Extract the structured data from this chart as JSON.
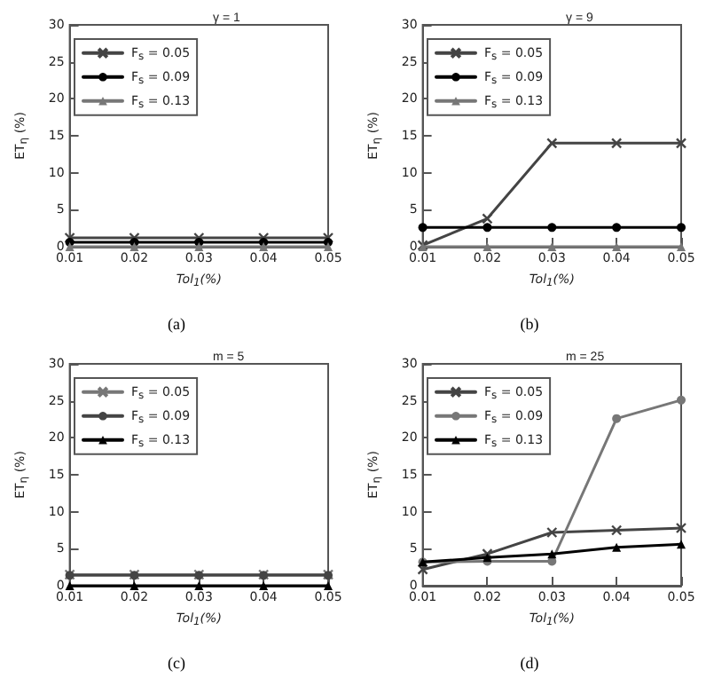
{
  "chart_data": [
    {
      "type": "line",
      "title": "γ = 1",
      "xlabel": "Tol$_{1}$(%)",
      "ylabel": "ET$_{η}$ (%)",
      "annotations": [
        "(a)"
      ],
      "x": [
        0.01,
        0.02,
        0.03,
        0.04,
        0.05
      ],
      "xlim": [
        0.01,
        0.05
      ],
      "xticks": [
        0.01,
        0.02,
        0.03,
        0.04,
        0.05
      ],
      "ylim": [
        0,
        30
      ],
      "yticks": [
        0,
        5,
        10,
        15,
        20,
        25,
        30
      ],
      "legend": "top left",
      "grid": false,
      "line_style": "solid",
      "series": [
        {
          "name": "F$_{s}$ = 0.05",
          "color": "#444444",
          "marker": "cross",
          "values": [
            1.2,
            1.2,
            1.2,
            1.2,
            1.2
          ]
        },
        {
          "name": "F$_{s}$ = 0.09",
          "color": "#000000",
          "marker": "circle",
          "values": [
            0.6,
            0.6,
            0.6,
            0.6,
            0.6
          ]
        },
        {
          "name": "F$_{s}$ = 0.13",
          "color": "#777777",
          "marker": "triangle",
          "values": [
            0,
            0,
            0,
            0,
            0
          ]
        }
      ]
    },
    {
      "type": "line",
      "title": "γ = 9",
      "xlabel": "Tol$_{1}$(%)",
      "ylabel": "ET$_{η}$ (%)",
      "annotations": [
        "(b)"
      ],
      "x": [
        0.01,
        0.02,
        0.03,
        0.04,
        0.05
      ],
      "xlim": [
        0.01,
        0.05
      ],
      "xticks": [
        0.01,
        0.02,
        0.03,
        0.04,
        0.05
      ],
      "ylim": [
        0,
        30
      ],
      "yticks": [
        0,
        5,
        10,
        15,
        20,
        25,
        30
      ],
      "legend": "top left",
      "grid": false,
      "line_style": "solid",
      "series": [
        {
          "name": "F$_{s}$ = 0.05",
          "color": "#444444",
          "marker": "cross",
          "values": [
            0.2,
            3.8,
            14,
            14,
            14
          ]
        },
        {
          "name": "F$_{s}$ = 0.09",
          "color": "#000000",
          "marker": "circle",
          "values": [
            2.6,
            2.6,
            2.6,
            2.6,
            2.6
          ]
        },
        {
          "name": "F$_{s}$ = 0.13",
          "color": "#777777",
          "marker": "triangle",
          "values": [
            0,
            0,
            0,
            0,
            0
          ]
        }
      ]
    },
    {
      "type": "line",
      "title": "m = 5",
      "xlabel": "Tol$_{1}$(%)",
      "ylabel": "ET$_{η}$ (%)",
      "annotations": [
        "(c)"
      ],
      "x": [
        0.01,
        0.02,
        0.03,
        0.04,
        0.05
      ],
      "xlim": [
        0.01,
        0.05
      ],
      "xticks": [
        0.01,
        0.02,
        0.03,
        0.04,
        0.05
      ],
      "ylim": [
        0,
        30
      ],
      "yticks": [
        0,
        5,
        10,
        15,
        20,
        25,
        30
      ],
      "legend": "top left",
      "grid": false,
      "line_style": "solid",
      "series": [
        {
          "name": "F$_{s}$ = 0.05",
          "color": "#777777",
          "marker": "cross",
          "values": [
            1.5,
            1.5,
            1.5,
            1.5,
            1.5
          ]
        },
        {
          "name": "F$_{s}$ = 0.09",
          "color": "#444444",
          "marker": "circle",
          "values": [
            1.4,
            1.4,
            1.4,
            1.4,
            1.4
          ]
        },
        {
          "name": "F$_{s}$ = 0.13",
          "color": "#000000",
          "marker": "triangle",
          "values": [
            0,
            0,
            0,
            0,
            0
          ]
        }
      ]
    },
    {
      "type": "line",
      "title": "m = 25",
      "xlabel": "Tol$_{1}$(%)",
      "ylabel": "ET$_{η}$ (%)",
      "annotations": [
        "(d)"
      ],
      "x": [
        0.01,
        0.02,
        0.03,
        0.04,
        0.05
      ],
      "xlim": [
        0.01,
        0.05
      ],
      "xticks": [
        0.01,
        0.02,
        0.03,
        0.04,
        0.05
      ],
      "ylim": [
        0,
        30
      ],
      "yticks": [
        0,
        5,
        10,
        15,
        20,
        25,
        30
      ],
      "legend": "top left",
      "grid": false,
      "line_style": "solid",
      "series": [
        {
          "name": "F$_{s}$ = 0.05",
          "color": "#444444",
          "marker": "cross",
          "values": [
            2.2,
            4.3,
            7.2,
            7.5,
            7.8
          ]
        },
        {
          "name": "F$_{s}$ = 0.09",
          "color": "#777777",
          "marker": "circle",
          "values": [
            3.2,
            3.3,
            3.3,
            22.6,
            25.1
          ]
        },
        {
          "name": "F$_{s}$ = 0.13",
          "color": "#000000",
          "marker": "triangle",
          "values": [
            3.2,
            3.8,
            4.3,
            5.2,
            5.6
          ]
        }
      ]
    }
  ]
}
